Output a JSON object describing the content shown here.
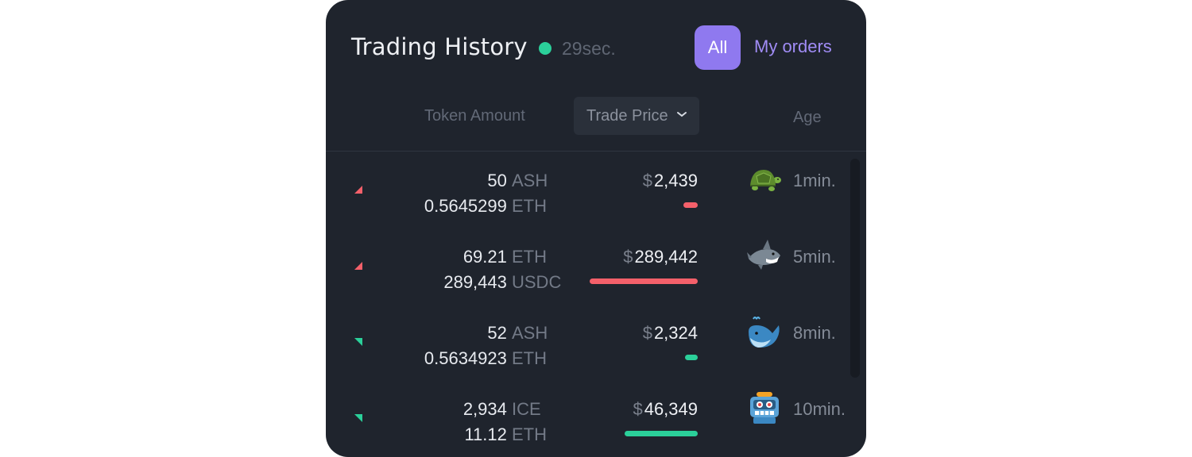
{
  "header": {
    "title": "Trading History",
    "refresh_age": "29sec.",
    "live_color": "#2bd09a",
    "tabs": [
      {
        "label": "All",
        "active": true
      },
      {
        "label": "My orders",
        "active": false
      }
    ]
  },
  "columns": {
    "token_amount": "Token Amount",
    "trade_price": "Trade Price",
    "age": "Age"
  },
  "rows": [
    {
      "side": "sell",
      "amount1": "50",
      "token1": "ASH",
      "amount2": "0.5645299",
      "token2": "ETH",
      "currency": "$",
      "price": "2,439",
      "bar_fraction": 0.13,
      "trader_icon": "turtle-icon",
      "age": "1min."
    },
    {
      "side": "sell",
      "amount1": "69.21",
      "token1": "ETH",
      "amount2": "289,443",
      "token2": "USDC",
      "currency": "$",
      "price": "289,442",
      "bar_fraction": 1.0,
      "trader_icon": "shark-icon",
      "age": "5min."
    },
    {
      "side": "buy",
      "amount1": "52",
      "token1": "ASH",
      "amount2": "0.5634923",
      "token2": "ETH",
      "currency": "$",
      "price": "2,324",
      "bar_fraction": 0.12,
      "trader_icon": "whale-icon",
      "age": "8min."
    },
    {
      "side": "buy",
      "amount1": "2,934",
      "token1": "ICE",
      "amount2": "11.12",
      "token2": "ETH",
      "currency": "$",
      "price": "46,349",
      "bar_fraction": 0.68,
      "trader_icon": "robot-icon",
      "age": "10min."
    }
  ],
  "colors": {
    "sell": "#f4606a",
    "buy": "#2bd09a",
    "accent": "#8f79ef",
    "panel": "#1f242d"
  }
}
